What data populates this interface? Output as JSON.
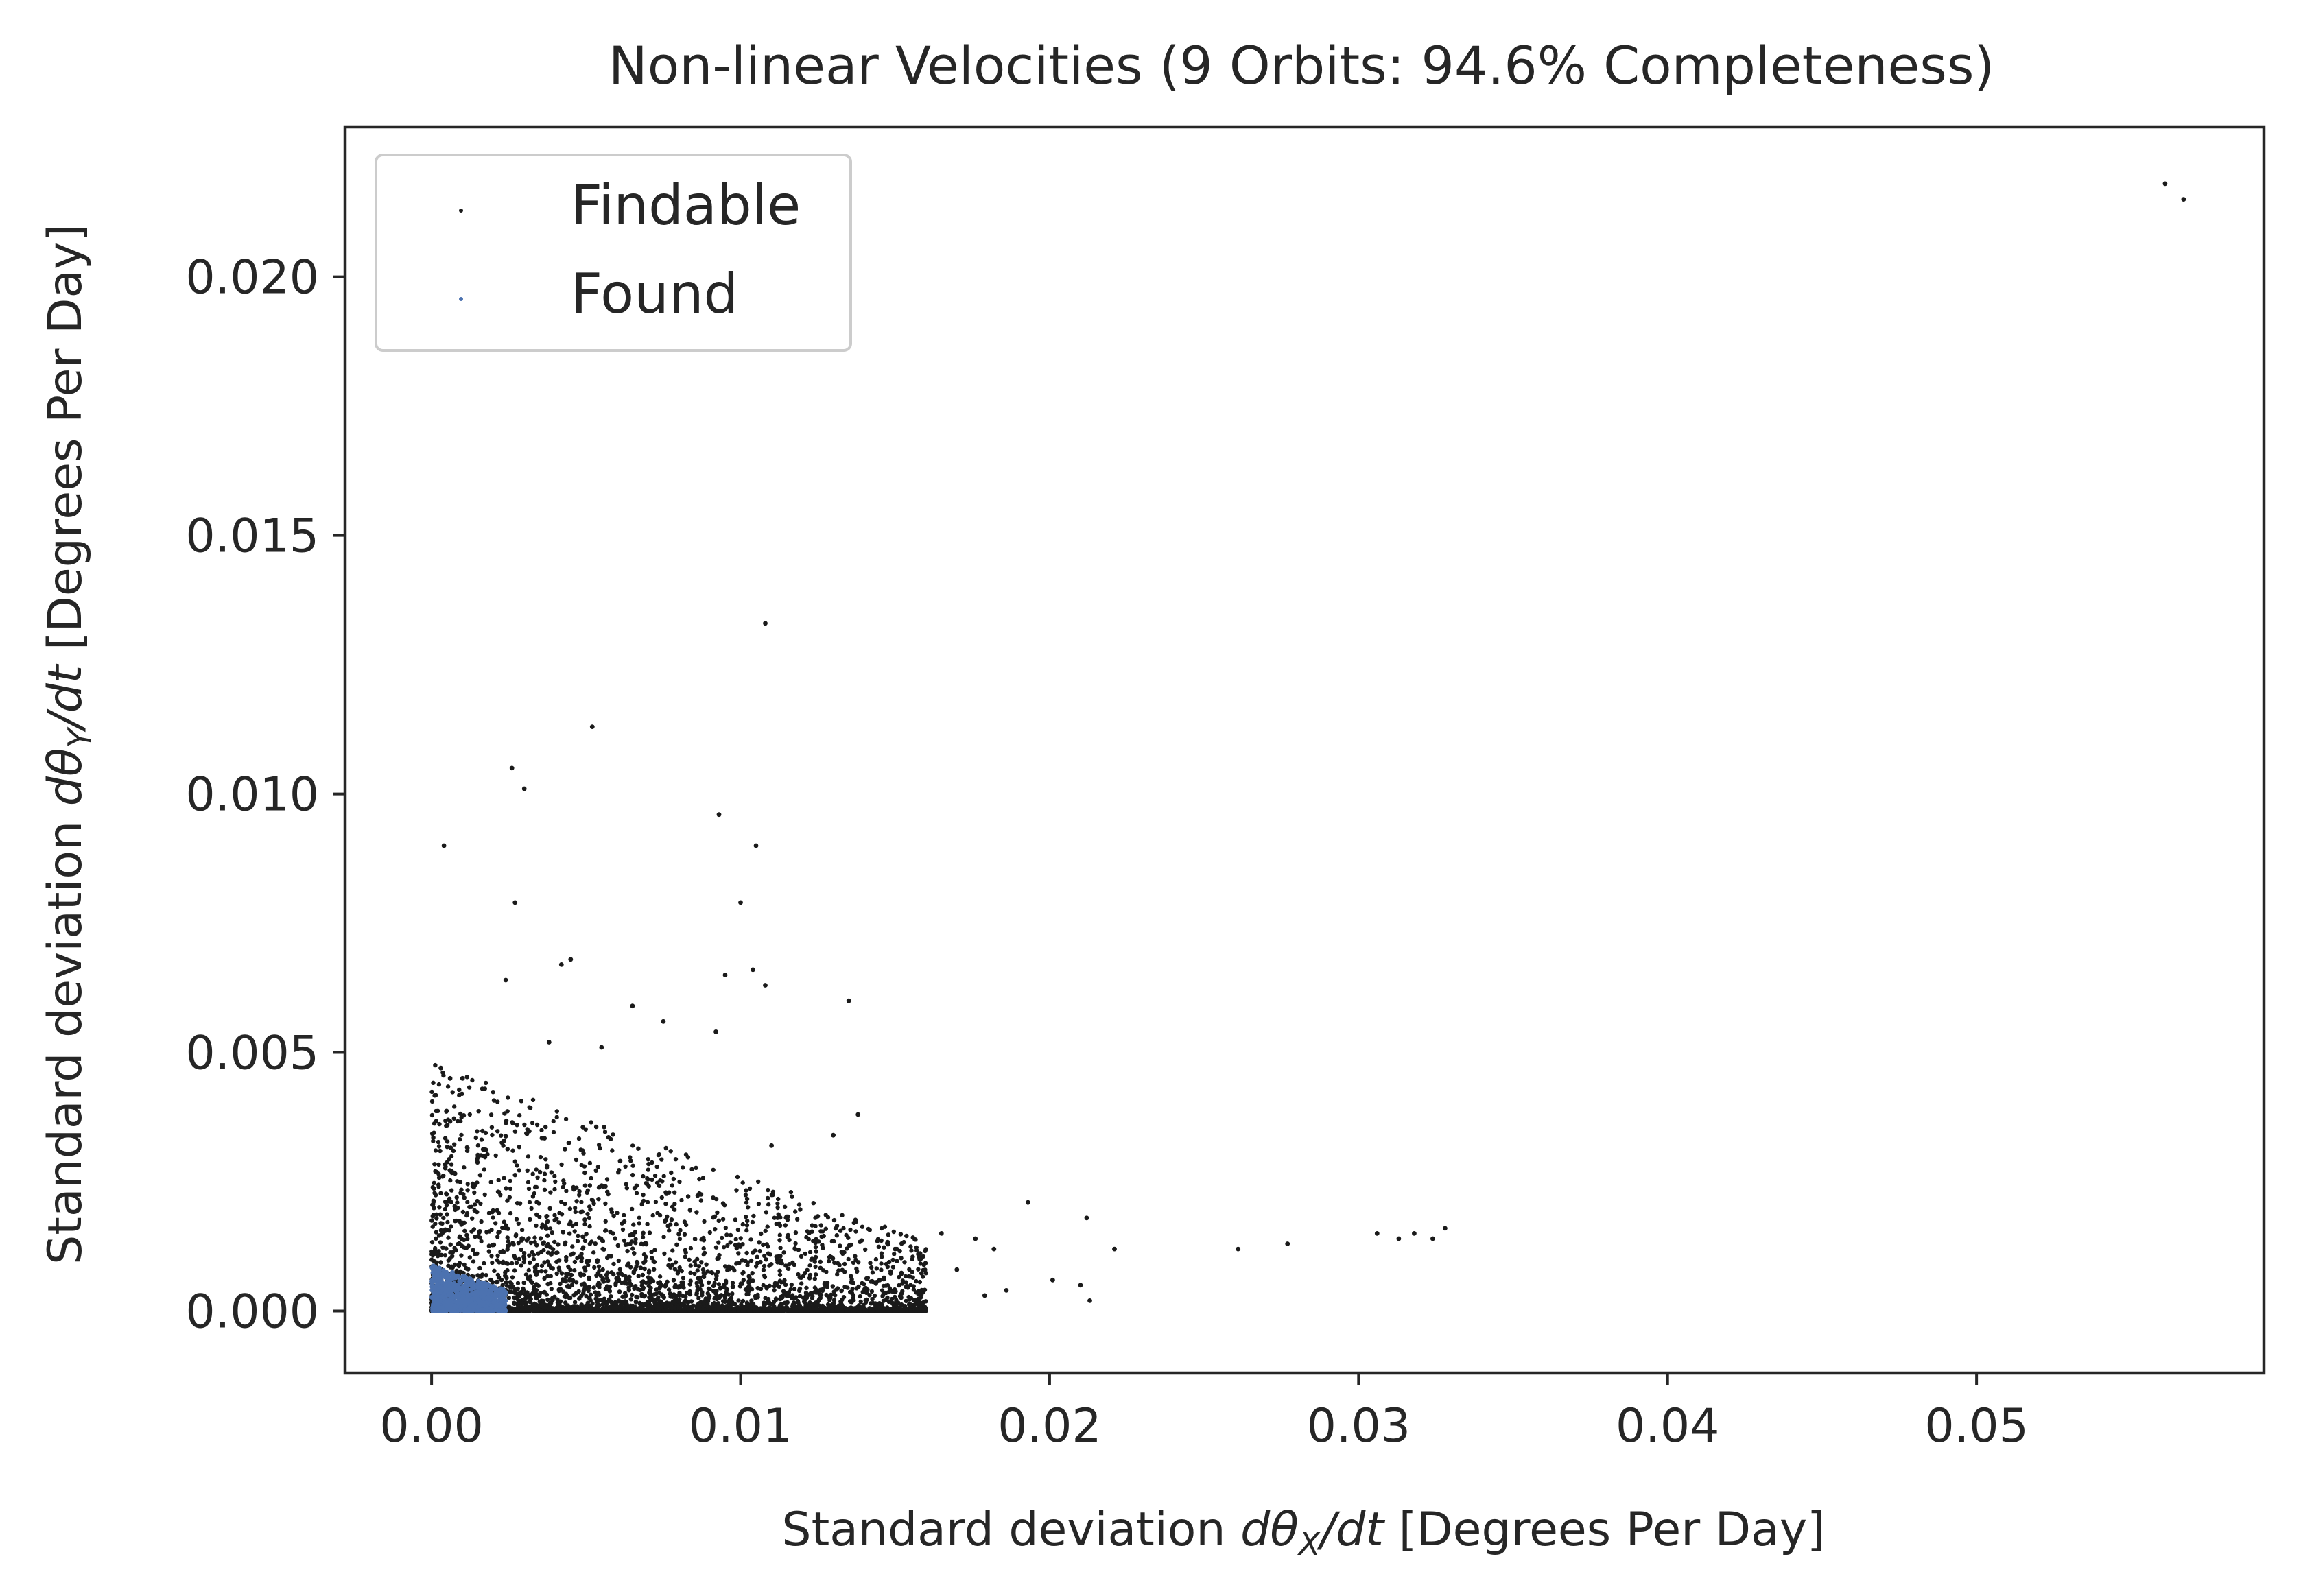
{
  "chart_data": {
    "type": "scatter",
    "title": "Non-linear Velocities (9 Orbits: 94.6% Completeness)",
    "xlabel": "Standard deviation dθX/dt [Degrees Per Day]",
    "ylabel": "Standard deviation dθY/dt [Degrees Per Day]",
    "xlabel_parts": {
      "pre": "Standard deviation ",
      "math": "dθ",
      "sub": "X",
      "math2": "/dt",
      "post": " [Degrees Per Day]"
    },
    "ylabel_parts": {
      "pre": "Standard deviation ",
      "math": "dθ",
      "sub": "Y",
      "math2": "/dt",
      "post": " [Degrees Per Day]"
    },
    "xlim": [
      -0.0028,
      0.0593
    ],
    "ylim": [
      -0.0012,
      0.0229
    ],
    "x_ticks": [
      {
        "value": 0.0,
        "label": "0.00"
      },
      {
        "value": 0.01,
        "label": "0.01"
      },
      {
        "value": 0.02,
        "label": "0.02"
      },
      {
        "value": 0.03,
        "label": "0.03"
      },
      {
        "value": 0.04,
        "label": "0.04"
      },
      {
        "value": 0.05,
        "label": "0.05"
      }
    ],
    "y_ticks": [
      {
        "value": 0.0,
        "label": "0.000"
      },
      {
        "value": 0.005,
        "label": "0.005"
      },
      {
        "value": 0.01,
        "label": "0.010"
      },
      {
        "value": 0.015,
        "label": "0.015"
      },
      {
        "value": 0.02,
        "label": "0.020"
      }
    ],
    "grid": false,
    "legend_position": "upper-left",
    "series": [
      {
        "name": "Findable",
        "color": "#1a1a1a",
        "points": [
          [
            0.0561,
            0.0218
          ],
          [
            0.0567,
            0.0215
          ],
          [
            0.0108,
            0.0133
          ],
          [
            0.0052,
            0.0113
          ],
          [
            0.0026,
            0.0105
          ],
          [
            0.003,
            0.0101
          ],
          [
            0.0093,
            0.0096
          ],
          [
            0.0004,
            0.009
          ],
          [
            0.0105,
            0.009
          ],
          [
            0.0027,
            0.0079
          ],
          [
            0.01,
            0.0079
          ],
          [
            0.0024,
            0.0064
          ],
          [
            0.0042,
            0.0067
          ],
          [
            0.0045,
            0.0068
          ],
          [
            0.0095,
            0.0065
          ],
          [
            0.0104,
            0.0066
          ],
          [
            0.0108,
            0.0063
          ],
          [
            0.0135,
            0.006
          ],
          [
            0.0065,
            0.0059
          ],
          [
            0.0075,
            0.0056
          ],
          [
            0.0092,
            0.0054
          ],
          [
            0.0038,
            0.0052
          ],
          [
            0.0055,
            0.0051
          ],
          [
            0.0003,
            0.0047
          ],
          [
            0.0006,
            0.0045
          ],
          [
            0.001,
            0.0045
          ],
          [
            0.0138,
            0.0038
          ],
          [
            0.013,
            0.0034
          ],
          [
            0.0061,
            0.0029
          ],
          [
            0.011,
            0.0032
          ],
          [
            0.0193,
            0.0021
          ],
          [
            0.0212,
            0.0018
          ],
          [
            0.0221,
            0.0012
          ],
          [
            0.0261,
            0.0012
          ],
          [
            0.0277,
            0.0013
          ],
          [
            0.0306,
            0.0015
          ],
          [
            0.0313,
            0.0014
          ],
          [
            0.0318,
            0.0015
          ],
          [
            0.0324,
            0.0014
          ],
          [
            0.0328,
            0.0016
          ],
          [
            0.0186,
            0.0004
          ],
          [
            0.0201,
            0.0006
          ],
          [
            0.021,
            0.0005
          ],
          [
            0.0213,
            0.0002
          ],
          [
            0.0176,
            0.0014
          ],
          [
            0.0182,
            0.0012
          ],
          [
            0.0165,
            0.0015
          ],
          [
            0.0158,
            0.001
          ],
          [
            0.017,
            0.0008
          ],
          [
            0.015,
            0.0012
          ],
          [
            0.0145,
            0.0006
          ],
          [
            0.0179,
            0.0003
          ]
        ],
        "dense_cluster": {
          "x_max": 0.016,
          "y_max": 0.0048,
          "count": 4200
        }
      },
      {
        "name": "Found",
        "color": "#4c72b0",
        "points": [],
        "dense_cluster": {
          "x_max": 0.0024,
          "y_max": 0.0009,
          "count": 900
        }
      }
    ]
  }
}
